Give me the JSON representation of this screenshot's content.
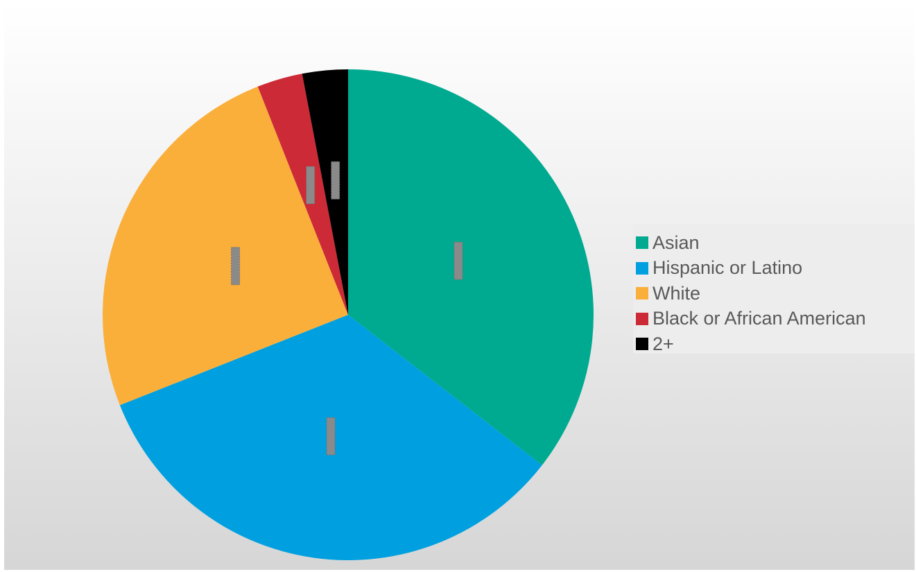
{
  "chart_data": {
    "type": "pie",
    "categories": [
      "Asian",
      "Hispanic or Latino",
      "White",
      "Black or African American",
      "2+"
    ],
    "values": [
      35.5,
      33.5,
      25,
      3,
      3
    ],
    "colors": [
      "#00AA90",
      "#00A0E0",
      "#FAAF3B",
      "#CC2A36",
      "#000000"
    ],
    "legend_position": "right",
    "data_labels": "obscured",
    "title": ""
  }
}
